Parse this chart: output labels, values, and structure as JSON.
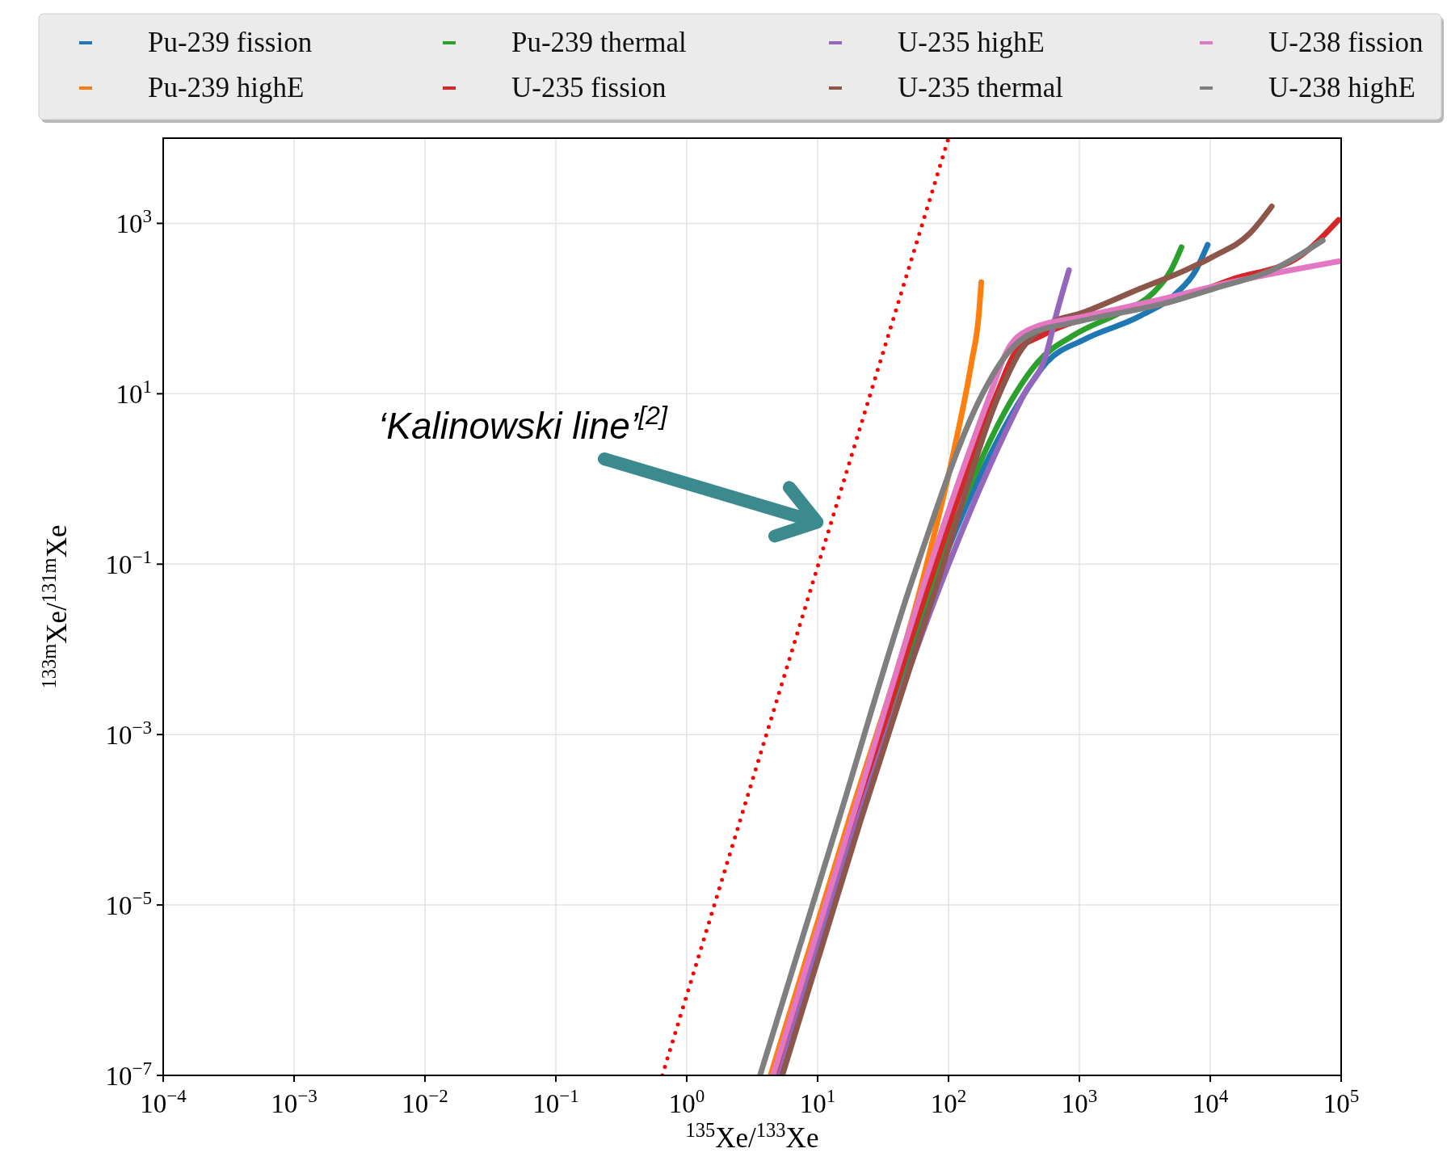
{
  "chart_data": {
    "type": "line",
    "xlabel": "$^{135}$Xe/$^{133}$Xe",
    "ylabel": "$^{133m}$Xe/$^{131m}$Xe",
    "log": "xy",
    "grid": true,
    "legend": "top",
    "xlim": [
      0.0001,
      100000
    ],
    "ylim": [
      1e-07,
      10000
    ],
    "xticks": [
      {
        "value": 0.0001,
        "label": "10$^{−4}$"
      },
      {
        "value": 0.001,
        "label": "10$^{−3}$"
      },
      {
        "value": 0.01,
        "label": "10$^{−2}$"
      },
      {
        "value": 0.1,
        "label": "10$^{−1}$"
      },
      {
        "value": 1,
        "label": "10$^{0}$"
      },
      {
        "value": 10,
        "label": "10$^{1}$"
      },
      {
        "value": 100,
        "label": "10$^{2}$"
      },
      {
        "value": 1000,
        "label": "10$^{3}$"
      },
      {
        "value": 10000,
        "label": "10$^{4}$"
      },
      {
        "value": 100000,
        "label": "10$^{5}$"
      }
    ],
    "yticks": [
      {
        "value": 1e-07,
        "label": "10$^{−7}$"
      },
      {
        "value": 1e-05,
        "label": "10$^{−5}$"
      },
      {
        "value": 0.001,
        "label": "10$^{−3}$"
      },
      {
        "value": 0.1,
        "label": "10$^{−1}$"
      },
      {
        "value": 10,
        "label": "10$^{1}$"
      },
      {
        "value": 1000,
        "label": "10$^{3}$"
      }
    ],
    "annotations": [
      "‘Kalinowski line’$^{[2]}$"
    ],
    "series": [
      {
        "name": "Pu-239 fission",
        "color": "#1f77b4",
        "x": [
          5.01,
          20,
          79.4,
          380,
          562,
          1100,
          2880,
          5500,
          7760,
          9550
        ],
        "values": [
          1e-07,
          0.0001,
          0.063,
          10,
          23.4,
          43.7,
          81.3,
          151,
          282,
          562
        ]
      },
      {
        "name": "Pu-239 highE",
        "color": "#ff7f0e",
        "x": [
          4.37,
          17.4,
          63.1,
          112,
          150,
          170,
          178
        ],
        "values": [
          1e-07,
          0.0001,
          0.063,
          2.45,
          23.4,
          81.3,
          204
        ]
      },
      {
        "name": "Pu-239 thermal",
        "color": "#2ca02c",
        "x": [
          4.9,
          19.5,
          75.9,
          324,
          479,
          912,
          2090,
          3630,
          5010,
          6030
        ],
        "values": [
          1e-07,
          0.0001,
          0.063,
          10,
          23.4,
          49,
          91.2,
          151,
          282,
          525
        ]
      },
      {
        "name": "U-235 fission",
        "color": "#d62728",
        "x": [
          4.79,
          19.1,
          72.4,
          234,
          324,
          525,
          1290,
          4680,
          14500,
          47900,
          95500
        ],
        "values": [
          1e-07,
          0.0001,
          0.063,
          10,
          30.2,
          49,
          81.3,
          117,
          219,
          407,
          1100
        ]
      },
      {
        "name": "U-235 highE",
        "color": "#9467bd",
        "x": [
          5.13,
          20.4,
          89.1,
          380,
          562,
          661,
          832
        ],
        "values": [
          1e-07,
          0.0001,
          0.063,
          10,
          30.2,
          81.3,
          282
        ]
      },
      {
        "name": "U-235 thermal",
        "color": "#8c564b",
        "x": [
          5.37,
          21.4,
          83.2,
          245,
          347,
          562,
          1100,
          2880,
          6460,
          10500,
          20000,
          29500
        ],
        "values": [
          1e-07,
          0.0001,
          0.063,
          10,
          30.2,
          63.1,
          91.2,
          170,
          282,
          407,
          759,
          1580
        ]
      },
      {
        "name": "U-238 fission",
        "color": "#e377c2",
        "x": [
          4.57,
          18.2,
          66,
          209,
          275,
          407,
          1100,
          4270,
          14500,
          100000
        ],
        "values": [
          1e-07,
          0.0001,
          0.063,
          10,
          30.2,
          56.2,
          81.3,
          129,
          204,
          363
        ]
      },
      {
        "name": "U-238 highE",
        "color": "#7f7f7f",
        "x": [
          3.63,
          14.5,
          52.5,
          182,
          251,
          407,
          1000,
          4680,
          10500,
          32400,
          72400
        ],
        "values": [
          1e-07,
          0.0001,
          0.063,
          10,
          23.4,
          49,
          70.8,
          117,
          170,
          302,
          631
        ]
      },
      {
        "color": "#ff0000",
        "line_style": "dotted",
        "x": [
          0.65,
          100
        ],
        "values": [
          1e-07,
          10000
        ]
      }
    ]
  }
}
